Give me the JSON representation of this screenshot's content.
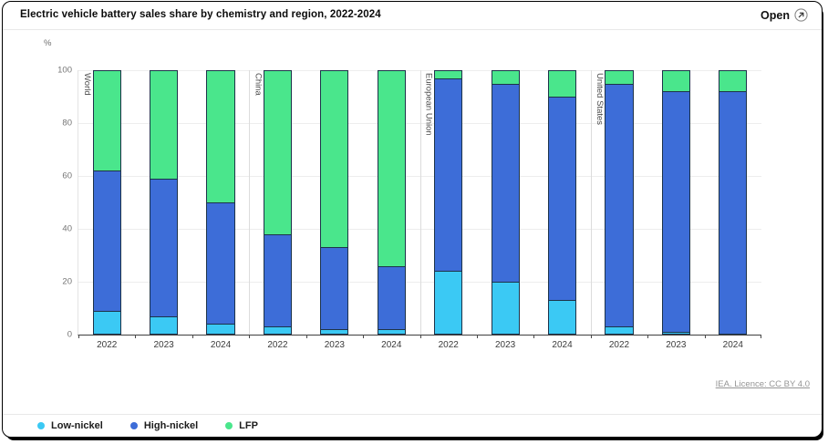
{
  "header": {
    "title": "Electric vehicle battery sales share by chemistry and region, 2022-2024",
    "open_label": "Open"
  },
  "chart_data": {
    "type": "bar",
    "stacked": true,
    "unit_label": "%",
    "ylim": [
      0,
      100
    ],
    "yticks": [
      0,
      20,
      40,
      60,
      80,
      100
    ],
    "grid": true,
    "legend_position": "bottom-left",
    "groups": [
      {
        "label": "World"
      },
      {
        "label": "China"
      },
      {
        "label": "European Union"
      },
      {
        "label": "United States"
      }
    ],
    "categories": [
      "2022",
      "2023",
      "2024",
      "2022",
      "2023",
      "2024",
      "2022",
      "2023",
      "2024",
      "2022",
      "2023",
      "2024"
    ],
    "series": [
      {
        "name": "Low-nickel",
        "color": "#3BC9F4",
        "values": [
          9,
          7,
          4,
          3,
          2,
          2,
          24,
          20,
          13,
          3,
          1,
          0
        ]
      },
      {
        "name": "High-nickel",
        "color": "#3D6DD8",
        "values": [
          53,
          52,
          46,
          35,
          31,
          24,
          73,
          75,
          77,
          92,
          91,
          92
        ]
      },
      {
        "name": "LFP",
        "color": "#4AE68C",
        "values": [
          38,
          41,
          50,
          62,
          67,
          74,
          3,
          5,
          10,
          5,
          8,
          8
        ]
      }
    ]
  },
  "footer": {
    "licence_label": "IEA. Licence: CC BY 4.0"
  },
  "colors": {
    "bar_border": "#1d3349",
    "axis": "#3f3f3f",
    "grid": "#ededed",
    "separator": "#dcdcdc"
  }
}
